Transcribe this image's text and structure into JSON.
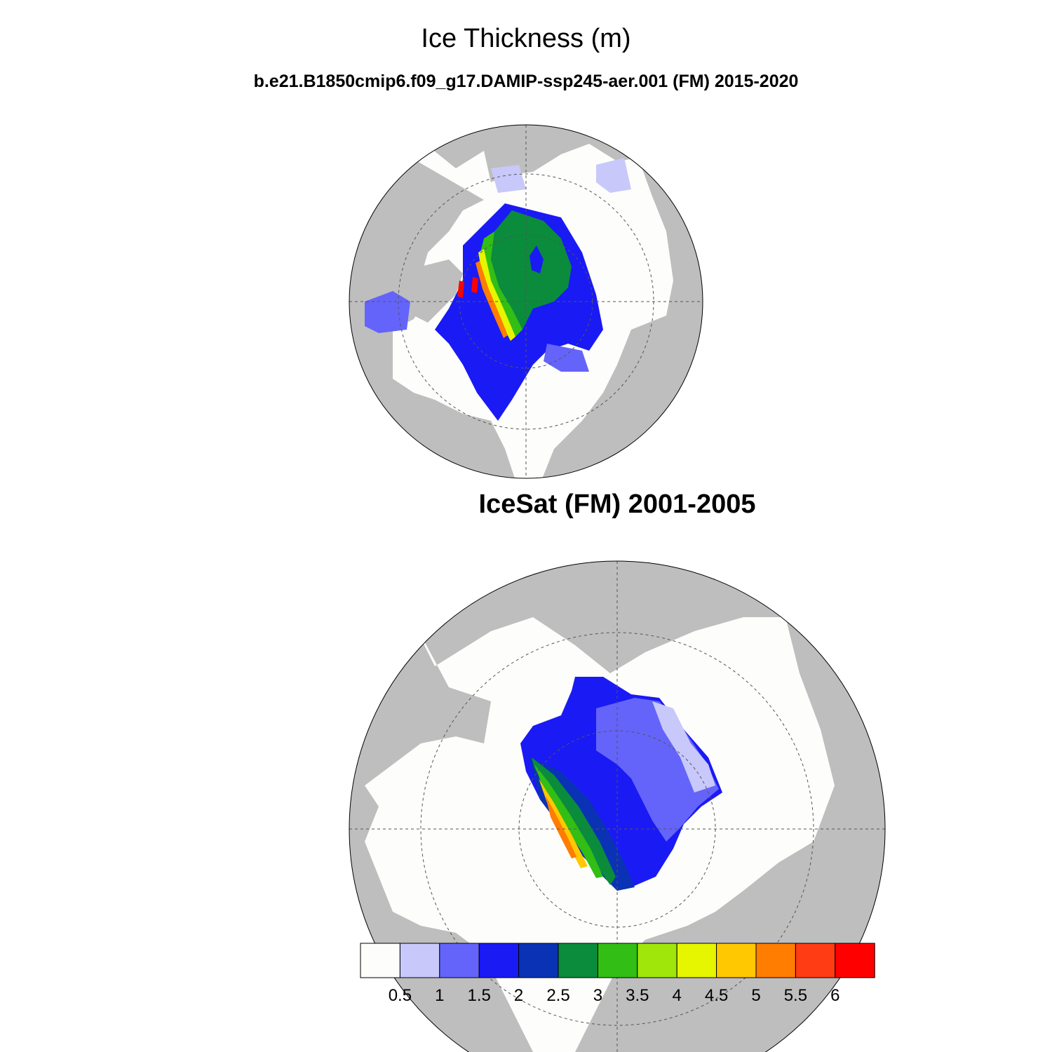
{
  "header": {
    "main_title": "Ice Thickness (m)",
    "subtitle": "b.e21.B1850cmip6.f09_g17.DAMIP-ssp245-aer.001 (FM) 2015-2020"
  },
  "panels": [
    {
      "id": "model",
      "title": ""
    },
    {
      "id": "obs",
      "title": "IceSat (FM) 2001-2005"
    }
  ],
  "colors": {
    "land": "#bebebe",
    "ocean": "#fdfdfb",
    "graticule": "#555555"
  },
  "colorbar": {
    "levels": [
      "0.5",
      "1",
      "1.5",
      "2",
      "2.5",
      "3",
      "3.5",
      "4",
      "4.5",
      "5",
      "5.5",
      "6"
    ],
    "colors": [
      "#fdfdfb",
      "#c8c8fa",
      "#6464fa",
      "#1a1af5",
      "#0a32b4",
      "#0a8c3c",
      "#32be14",
      "#a0e60a",
      "#e6f500",
      "#ffc800",
      "#ff7d00",
      "#ff3c14",
      "#ff0000"
    ]
  }
}
